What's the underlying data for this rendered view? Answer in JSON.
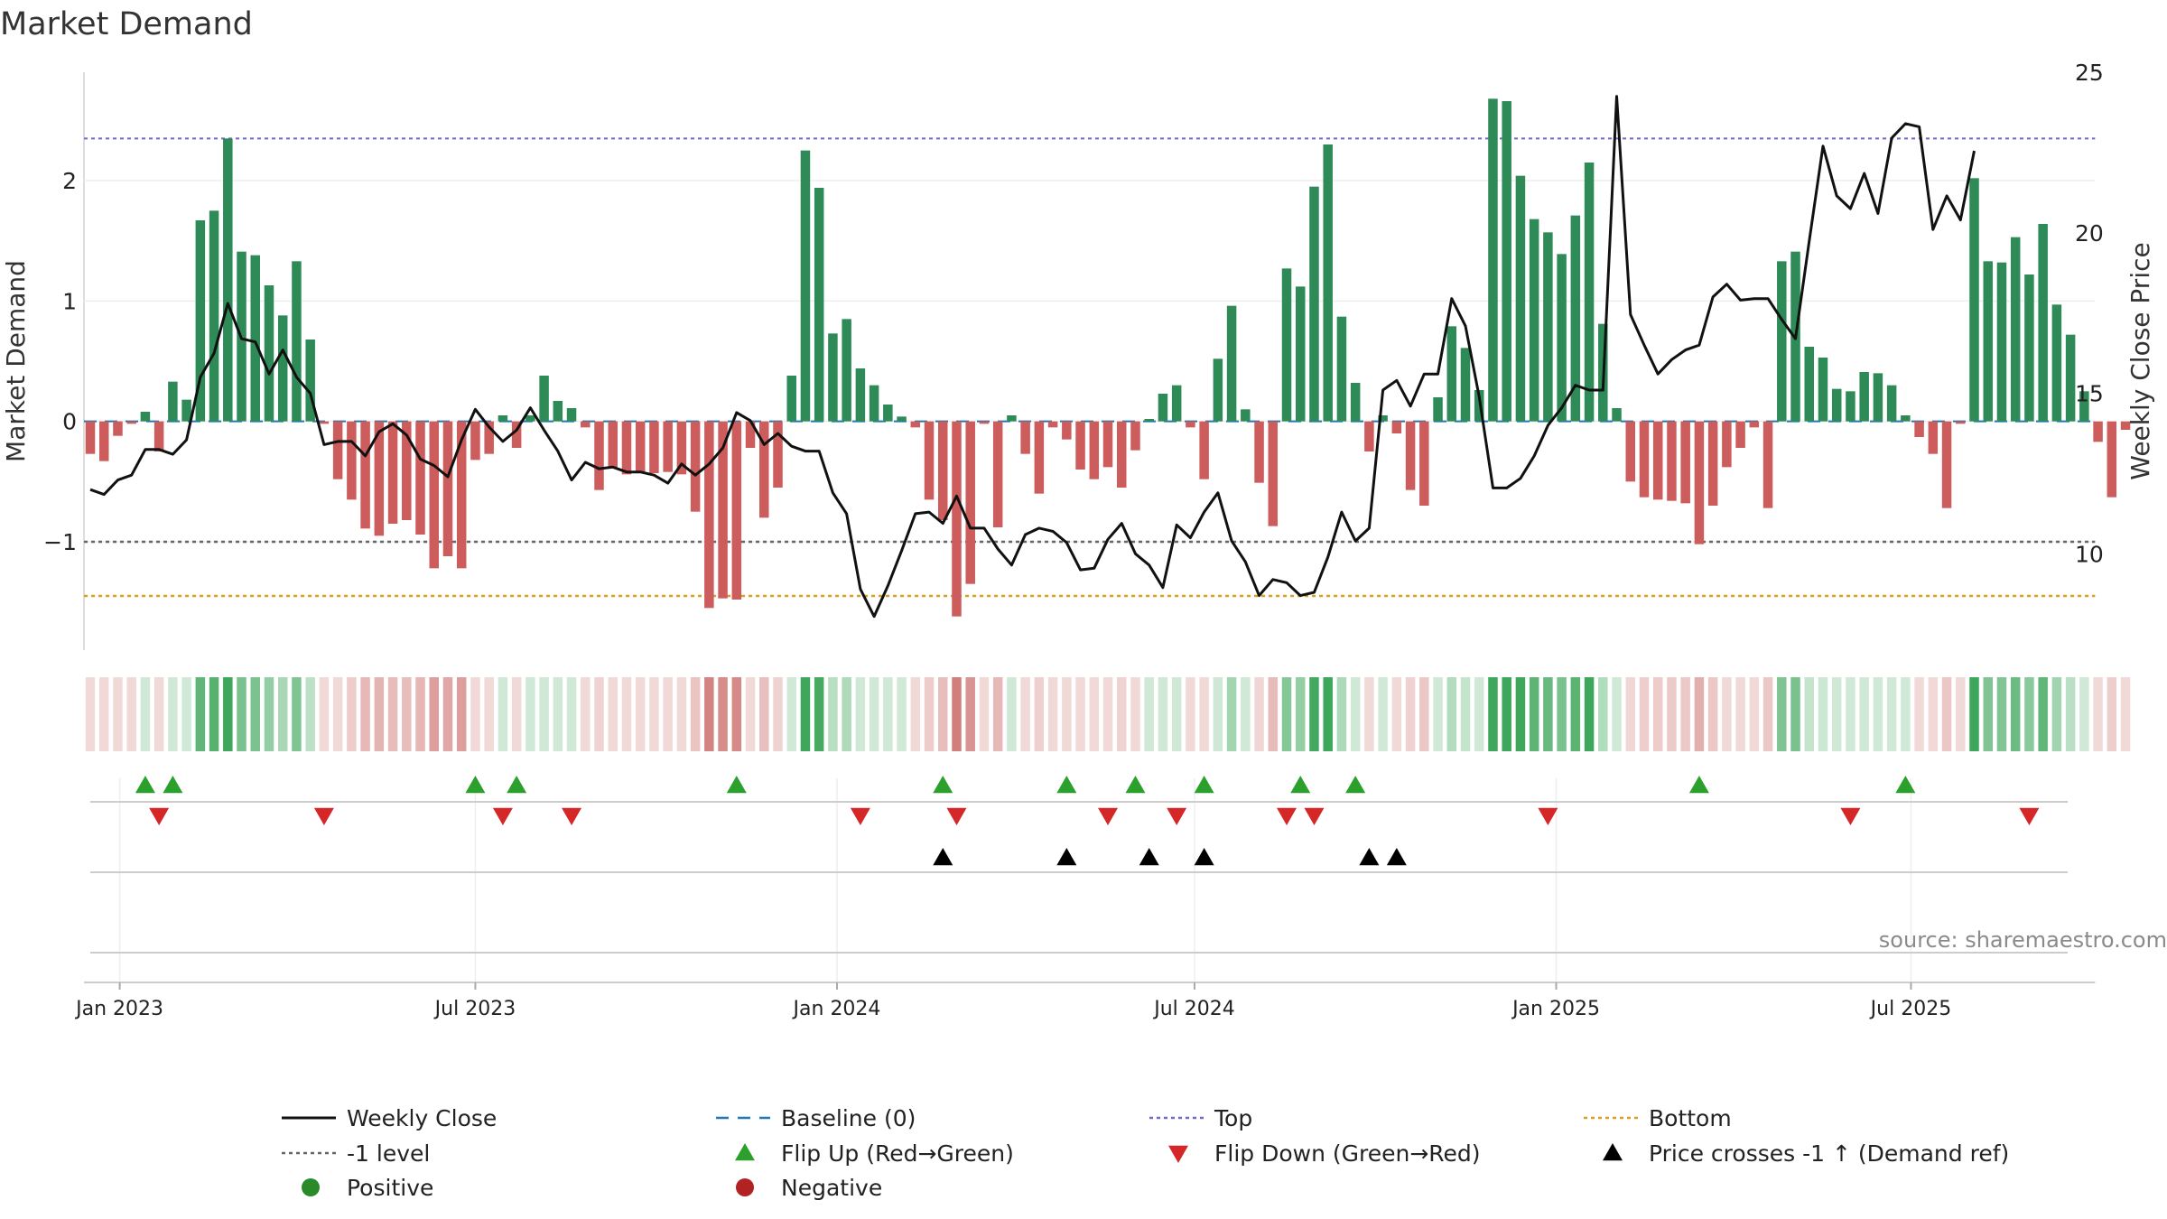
{
  "chart_data": {
    "type": "bar",
    "title": "Market Demand",
    "source": "source: sharemaestro.com",
    "ylabel_left": "Market Demand",
    "ylabel_right": "Weekly Close Price",
    "ylim_left": [
      -1.9,
      2.9
    ],
    "ylim_right": [
      7.0,
      25.0
    ],
    "yticks_left": [
      {
        "value": 2,
        "label": "2"
      },
      {
        "value": 1,
        "label": "1"
      },
      {
        "value": 0,
        "label": "0"
      },
      {
        "value": -1,
        "label": "−1"
      }
    ],
    "yticks_right": [
      {
        "value": 25,
        "label": "25"
      },
      {
        "value": 20,
        "label": "20"
      },
      {
        "value": 15,
        "label": "15"
      },
      {
        "value": 10,
        "label": "10"
      }
    ],
    "x_start": "2022-12-19",
    "weeks": 146,
    "xticks": [
      {
        "week": 2.14,
        "label": "Jan 2023"
      },
      {
        "week": 28.0,
        "label": "Jul 2023"
      },
      {
        "week": 54.3,
        "label": "Jan 2024"
      },
      {
        "week": 80.3,
        "label": "Jul 2024"
      },
      {
        "week": 106.6,
        "label": "Jan 2025"
      },
      {
        "week": 132.4,
        "label": "Jul 2025"
      }
    ],
    "reference_lines": {
      "top": 2.35,
      "bottom": -1.45,
      "minus_one": -1.0,
      "baseline": 0
    },
    "demand": [
      -0.27,
      -0.33,
      -0.12,
      -0.02,
      0.08,
      -0.25,
      0.33,
      0.18,
      1.67,
      1.75,
      2.35,
      1.41,
      1.38,
      1.13,
      0.88,
      1.33,
      0.68,
      -0.02,
      -0.48,
      -0.65,
      -0.89,
      -0.95,
      -0.85,
      -0.82,
      -0.94,
      -1.22,
      -1.12,
      -1.22,
      -0.32,
      -0.27,
      0.05,
      -0.22,
      0.05,
      0.38,
      0.17,
      0.11,
      -0.05,
      -0.57,
      -0.38,
      -0.44,
      -0.42,
      -0.43,
      -0.42,
      -0.44,
      -0.75,
      -1.55,
      -1.47,
      -1.48,
      -0.22,
      -0.8,
      -0.55,
      0.38,
      2.25,
      1.94,
      0.73,
      0.85,
      0.44,
      0.3,
      0.14,
      0.04,
      -0.05,
      -0.65,
      -0.82,
      -1.62,
      -1.35,
      -0.02,
      -0.88,
      0.05,
      -0.27,
      -0.6,
      -0.05,
      -0.15,
      -0.4,
      -0.48,
      -0.38,
      -0.55,
      -0.24,
      0.02,
      0.23,
      0.3,
      -0.05,
      -0.48,
      0.52,
      0.96,
      0.1,
      -0.51,
      -0.87,
      1.27,
      1.12,
      1.95,
      2.3,
      0.87,
      0.32,
      -0.25,
      0.05,
      -0.1,
      -0.57,
      -0.7,
      0.2,
      0.79,
      0.61,
      0.26,
      2.68,
      2.66,
      2.04,
      1.68,
      1.57,
      1.39,
      1.71,
      2.15,
      0.81,
      0.11,
      -0.5,
      -0.63,
      -0.65,
      -0.66,
      -0.68,
      -1.02,
      -0.7,
      -0.38,
      -0.22,
      -0.05,
      -0.72,
      1.33,
      1.41,
      0.62,
      0.53,
      0.27,
      0.25,
      0.41,
      0.4,
      0.3,
      0.05,
      -0.13,
      -0.27,
      -0.72,
      -0.02,
      2.02,
      1.33,
      1.32,
      1.53,
      1.22,
      1.64,
      0.97,
      0.72,
      0.25,
      -0.17,
      -0.63,
      -0.07
    ],
    "weekly_close": [
      12.0,
      11.85,
      12.3,
      12.45,
      13.25,
      13.25,
      13.1,
      13.55,
      15.5,
      16.25,
      17.8,
      16.7,
      16.6,
      15.6,
      16.35,
      15.5,
      15.0,
      13.4,
      13.5,
      13.5,
      13.05,
      13.8,
      14.05,
      13.7,
      12.95,
      12.75,
      12.4,
      13.55,
      14.5,
      13.95,
      13.5,
      13.85,
      14.55,
      13.85,
      13.2,
      12.3,
      12.85,
      12.65,
      12.7,
      12.55,
      12.55,
      12.45,
      12.2,
      12.8,
      12.45,
      12.8,
      13.3,
      14.4,
      14.15,
      13.4,
      13.75,
      13.35,
      13.2,
      13.2,
      11.9,
      11.25,
      8.9,
      8.05,
      9.0,
      10.1,
      11.25,
      11.3,
      10.95,
      11.8,
      10.8,
      10.8,
      10.15,
      9.65,
      10.6,
      10.8,
      10.7,
      10.35,
      9.5,
      9.55,
      10.45,
      10.95,
      10.0,
      9.65,
      8.95,
      10.9,
      10.5,
      11.3,
      11.9,
      10.4,
      9.75,
      8.7,
      9.2,
      9.1,
      8.7,
      8.8,
      9.9,
      11.3,
      10.4,
      10.8,
      15.1,
      15.4,
      14.6,
      15.6,
      15.6,
      17.95,
      17.1,
      14.9,
      12.05,
      12.05,
      12.35,
      13.05,
      14.0,
      14.55,
      15.25,
      15.1,
      15.1,
      24.25,
      17.45,
      16.5,
      15.6,
      16.05,
      16.35,
      16.5,
      18.0,
      18.4,
      17.9,
      17.95,
      17.95,
      17.3,
      16.7,
      19.75,
      22.7,
      21.15,
      20.75,
      21.85,
      20.6,
      22.95,
      23.4,
      23.3,
      20.1,
      21.15,
      20.4,
      22.55
    ],
    "flip_up_weeks": [
      4,
      6,
      28,
      31,
      47,
      62,
      71,
      76,
      81,
      88,
      92,
      117,
      132
    ],
    "flip_down_weeks": [
      5,
      17,
      30,
      35,
      56,
      63,
      74,
      79,
      87,
      89,
      106,
      128,
      141
    ],
    "price_cross_weeks": [
      62,
      71,
      77,
      81,
      93,
      95
    ],
    "legend": [
      {
        "label": "Weekly Close",
        "symbol": "line-solid",
        "color": "#111111"
      },
      {
        "label": "Baseline (0)",
        "symbol": "line-dash",
        "color": "#1f77b4"
      },
      {
        "label": "Top",
        "symbol": "line-dot",
        "color": "#6a6ad0"
      },
      {
        "label": "Bottom",
        "symbol": "line-dot",
        "color": "#d9a01f"
      },
      {
        "label": "-1 level",
        "symbol": "line-dot",
        "color": "#666666"
      },
      {
        "label": "Flip Up (Red→Green)",
        "symbol": "tri-up",
        "color": "#2ca02c"
      },
      {
        "label": "Flip Down (Green→Red)",
        "symbol": "tri-down",
        "color": "#d62728"
      },
      {
        "label": "Price crosses -1 ↑ (Demand ref)",
        "symbol": "tri-up",
        "color": "#000000"
      },
      {
        "label": "Positive",
        "symbol": "circle",
        "color": "#2a8a2a"
      },
      {
        "label": "Negative",
        "symbol": "circle",
        "color": "#b22222"
      }
    ],
    "colors": {
      "positive_bar": "#2e8b57",
      "negative_bar": "#cd5c5c",
      "heat_positive": "#2a9d4a",
      "heat_negative": "#c0504d",
      "close_line": "#111111",
      "flip_up": "#2ca02c",
      "flip_down": "#d62728",
      "price_cross": "#000000"
    }
  }
}
